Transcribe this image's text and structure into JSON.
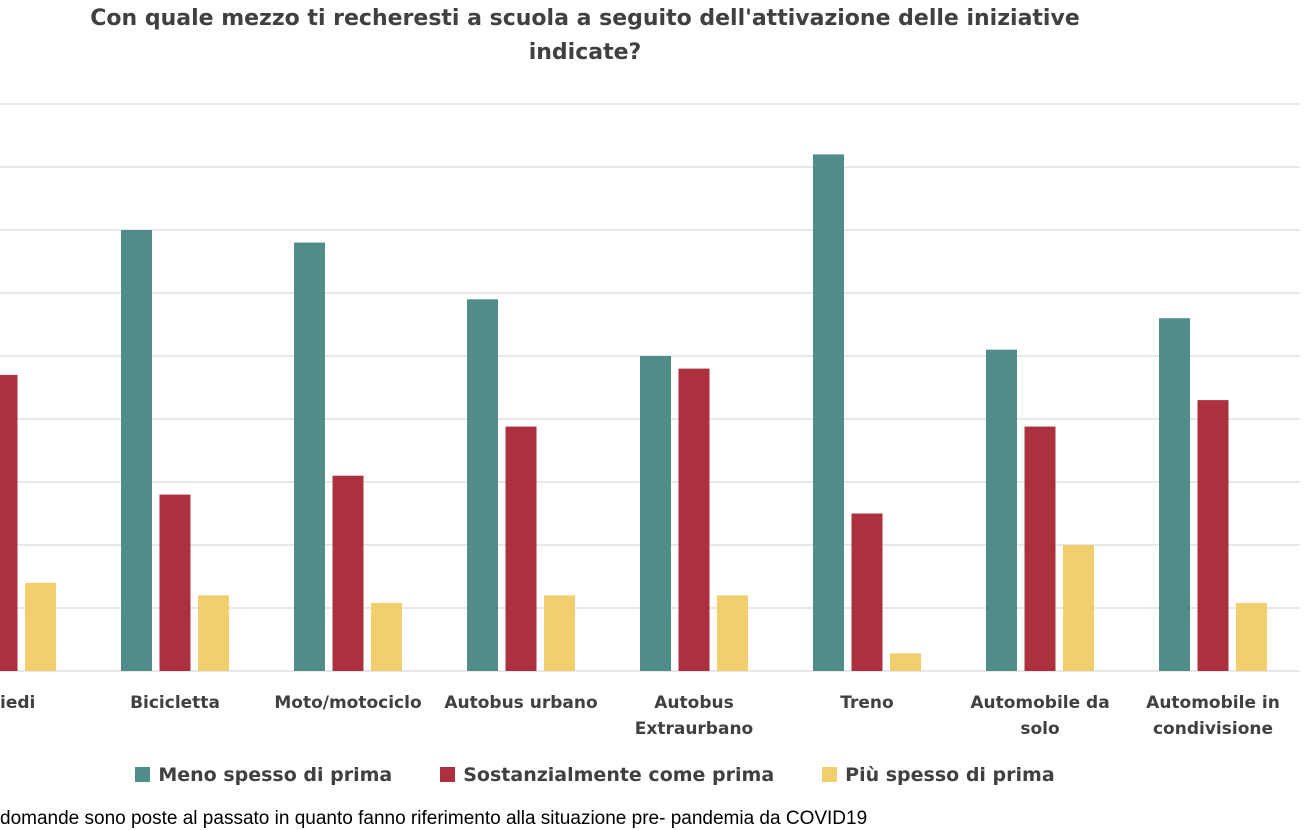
{
  "chart_data": {
    "type": "bar",
    "title": "Con quale mezzo ti recheresti a scuola a seguito dell'attivazione delle iniziative indicate?",
    "categories": [
      "iedi",
      "Bicicletta",
      "Moto/motociclo",
      "Autobus urbano",
      "Autobus Extraurbano",
      "Treno",
      "Automobile da solo",
      "Automobile in condivisione"
    ],
    "series": [
      {
        "name": "Meno spesso di prima",
        "color": "#508c88",
        "values": [
          null,
          35,
          34,
          29.5,
          25,
          41,
          25.5,
          28
        ]
      },
      {
        "name": "Sostanzialmente come prima",
        "color": "#ad303e",
        "values": [
          23.5,
          14,
          15.5,
          19.4,
          24,
          12.5,
          19.4,
          21.5
        ]
      },
      {
        "name": "Più spesso di prima",
        "color": "#f0cf6c",
        "values": [
          7,
          6,
          5.4,
          6,
          6,
          1.4,
          10,
          5.4
        ]
      }
    ],
    "ylim": [
      0,
      45
    ],
    "yticks": [
      0,
      5,
      10,
      15,
      20,
      25,
      30,
      35,
      40,
      45
    ],
    "grid": true,
    "legend": "bottom",
    "note": "domande sono poste al passato in quanto fanno riferimento alla situazione pre- pandemia da COVID19"
  }
}
